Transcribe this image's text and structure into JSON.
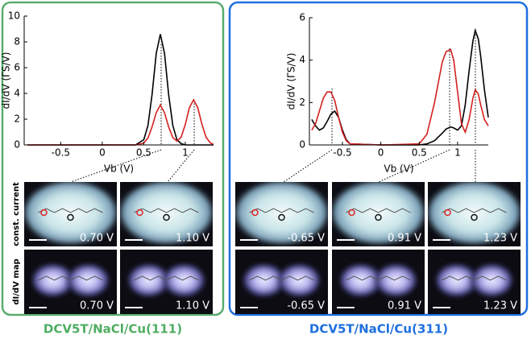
{
  "chart_data": [
    {
      "type": "line",
      "xlabel": "Vb (V)",
      "ylabel": "dI/dV (ΓS/V)",
      "x": [
        -0.9,
        -0.5,
        0,
        0.3,
        0.4,
        0.5,
        0.55,
        0.6,
        0.65,
        0.7,
        0.75,
        0.8,
        0.85,
        0.9,
        0.95,
        1.0,
        1.05,
        1.1,
        1.15,
        1.2,
        1.25,
        1.3,
        1.34
      ],
      "series": [
        {
          "color": "#000000",
          "values": [
            0,
            0,
            0,
            0,
            0,
            0.4,
            1.5,
            3.9,
            7.1,
            8.6,
            7.1,
            3.9,
            1.5,
            0.4,
            0.1,
            0,
            0,
            0,
            0,
            0,
            0,
            0,
            0
          ]
        },
        {
          "color": "#d42020",
          "values": [
            0,
            0,
            0,
            0,
            0,
            0.14,
            0.53,
            1.4,
            2.5,
            3.1,
            2.5,
            1.4,
            0.57,
            0.3,
            0.6,
            1.6,
            2.9,
            3.5,
            2.9,
            1.6,
            0.6,
            0.16,
            0.04
          ]
        }
      ],
      "xlim": [
        -0.94,
        1.34
      ],
      "xticks": [
        -0.5,
        0,
        0.5,
        1
      ],
      "ylim": [
        0,
        10
      ],
      "yticks": [
        0,
        2,
        4,
        6,
        8,
        10
      ]
    },
    {
      "type": "line",
      "xlabel": "Vb (V)",
      "ylabel": "dI/dV (ΓS/V)",
      "x": [
        -0.9,
        -0.85,
        -0.8,
        -0.75,
        -0.7,
        -0.65,
        -0.6,
        -0.55,
        -0.5,
        -0.45,
        -0.4,
        0,
        0.5,
        0.6,
        0.7,
        0.8,
        0.85,
        0.91,
        0.95,
        1.0,
        1.05,
        1.1,
        1.15,
        1.2,
        1.23,
        1.27,
        1.3,
        1.35,
        1.4
      ],
      "series": [
        {
          "color": "#000000",
          "values": [
            1.2,
            0.9,
            0.7,
            0.8,
            1.1,
            1.45,
            1.6,
            1.3,
            0.7,
            0.25,
            0.05,
            0,
            0,
            0.05,
            0.2,
            0.55,
            0.75,
            0.85,
            0.8,
            0.7,
            0.9,
            1.9,
            3.5,
            4.9,
            5.4,
            5.0,
            4.2,
            2.6,
            1.3
          ]
        },
        {
          "color": "#d42020",
          "values": [
            0.7,
            1.0,
            1.6,
            2.2,
            2.5,
            2.5,
            2.1,
            1.3,
            0.6,
            0.2,
            0.05,
            0,
            0.05,
            0.5,
            2.0,
            3.9,
            4.4,
            4.5,
            4.0,
            2.5,
            1.0,
            0.6,
            1.2,
            2.2,
            2.6,
            2.4,
            1.9,
            1.2,
            0.9
          ]
        }
      ],
      "xlim": [
        -0.93,
        1.4
      ],
      "xticks": [
        -0.5,
        0,
        0.5,
        1
      ],
      "ylim": [
        0,
        6
      ],
      "yticks": [
        0,
        2,
        4,
        6
      ]
    }
  ],
  "panels": {
    "row_labels": [
      "const. current",
      "dI/dV map"
    ],
    "left": {
      "title": "DCV5T/NaCl/Cu(111)",
      "voltages": [
        "0.70 V",
        "1.10 V"
      ]
    },
    "right": {
      "title": "DCV5T/NaCl/Cu(311)",
      "voltages": [
        "-0.65 V",
        "0.91 V",
        "1.23 V"
      ]
    }
  }
}
